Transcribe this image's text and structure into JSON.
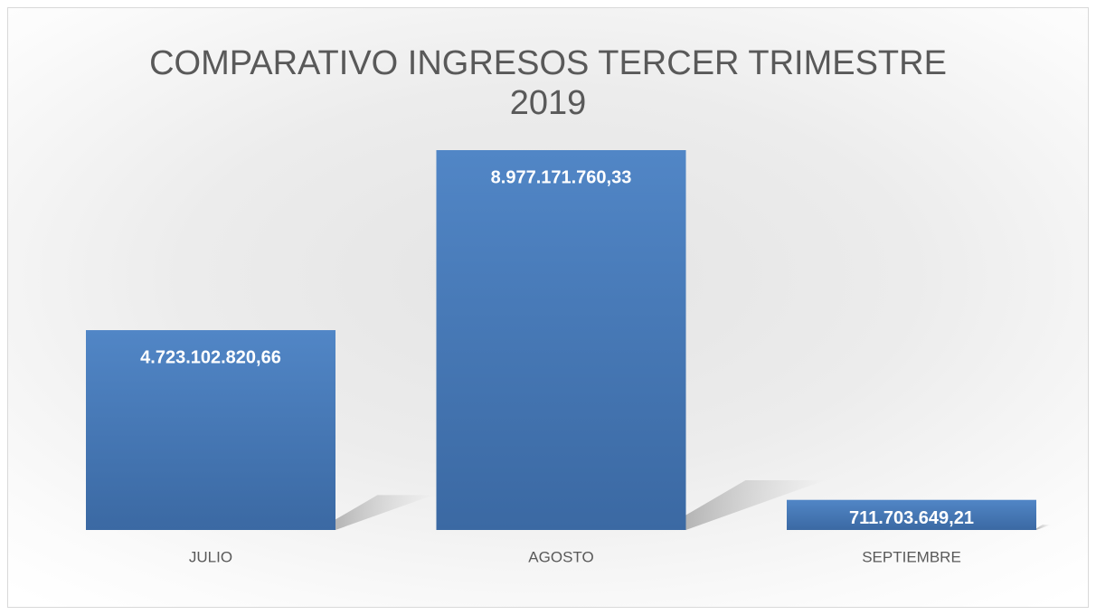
{
  "chart_data": {
    "type": "bar",
    "title": "COMPARATIVO INGRESOS TERCER TRIMESTRE 2019",
    "categories": [
      "JULIO",
      "AGOSTO",
      "SEPTIEMBRE"
    ],
    "values": [
      4723102820.66,
      8977171760.33,
      711703649.21
    ],
    "value_labels": [
      "4.723.102.820,66",
      "8.977.171.760,33",
      "711.703.649,21"
    ],
    "color": "#4a7ab5"
  }
}
